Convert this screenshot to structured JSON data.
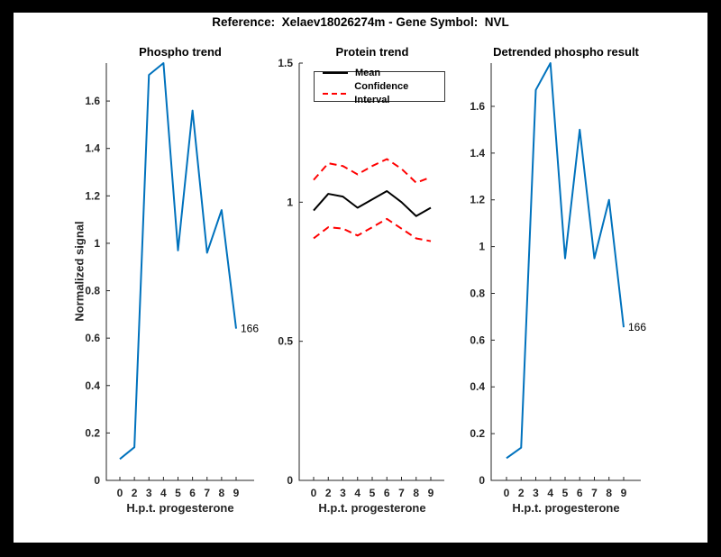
{
  "figure": {
    "title": "Reference:  Xelaev18026274m - Gene Symbol:  NVL",
    "background_color": "#ffffff",
    "border_color": "#000000",
    "axis_color": "#262626"
  },
  "chart_data": [
    {
      "id": "phospho-trend",
      "type": "line",
      "title": "Phospho trend",
      "xlabel": "H.p.t. progesterone",
      "ylabel": "Normalized signal",
      "categories": [
        "0",
        "2",
        "3",
        "4",
        "5",
        "6",
        "7",
        "8",
        "9"
      ],
      "series": [
        {
          "name": "Phospho",
          "color": "#0072BD",
          "dash": "solid",
          "values": [
            0.09,
            0.14,
            1.71,
            1.76,
            0.97,
            1.56,
            0.96,
            1.14,
            0.64
          ]
        }
      ],
      "end_label": "166",
      "ylim": [
        0,
        1.76
      ],
      "yticks": [
        0,
        0.2,
        0.4,
        0.6,
        0.8,
        1.0,
        1.2,
        1.4,
        1.6
      ],
      "ytick_labels": [
        "0",
        "0.2",
        "0.4",
        "0.6",
        "0.8",
        "1",
        "1.2",
        "1.4",
        "1.6"
      ],
      "grid": false
    },
    {
      "id": "protein-trend",
      "type": "line",
      "title": "Protein trend",
      "xlabel": "H.p.t. progesterone",
      "ylabel": "",
      "categories": [
        "0",
        "2",
        "3",
        "4",
        "5",
        "6",
        "7",
        "8",
        "9"
      ],
      "series": [
        {
          "name": "Confidence Interval upper",
          "color": "#ff0000",
          "dash": "dashed",
          "values": [
            1.08,
            1.14,
            1.13,
            1.1,
            1.13,
            1.155,
            1.12,
            1.07,
            1.09
          ]
        },
        {
          "name": "Confidence Interval lower",
          "color": "#ff0000",
          "dash": "dashed",
          "values": [
            0.87,
            0.91,
            0.905,
            0.88,
            0.91,
            0.94,
            0.905,
            0.87,
            0.86
          ]
        },
        {
          "name": "Mean",
          "color": "#000000",
          "dash": "solid",
          "values": [
            0.97,
            1.03,
            1.02,
            0.98,
            1.01,
            1.04,
            1.0,
            0.95,
            0.98
          ]
        }
      ],
      "legend": {
        "position": "top",
        "entries": [
          {
            "label": "Mean",
            "color": "#000000",
            "style": "solid"
          },
          {
            "label": "Confidence Interval",
            "color": "#ff0000",
            "style": "dashed"
          }
        ]
      },
      "ylim": [
        0,
        1.5
      ],
      "yticks": [
        0,
        0.5,
        1.0,
        1.5
      ],
      "ytick_labels": [
        "0",
        "0.5",
        "1",
        "1.5"
      ],
      "grid": false
    },
    {
      "id": "detrended-phospho",
      "type": "line",
      "title": "Detrended phospho result",
      "xlabel": "H.p.t. progesterone",
      "ylabel": "",
      "categories": [
        "0",
        "2",
        "3",
        "4",
        "5",
        "6",
        "7",
        "8",
        "9"
      ],
      "series": [
        {
          "name": "Detrended phospho",
          "color": "#0072BD",
          "dash": "solid",
          "values": [
            0.095,
            0.14,
            1.67,
            1.785,
            0.95,
            1.5,
            0.95,
            1.2,
            0.655
          ]
        }
      ],
      "end_label": "166",
      "ylim": [
        0,
        1.785
      ],
      "yticks": [
        0,
        0.2,
        0.4,
        0.6,
        0.8,
        1.0,
        1.2,
        1.4,
        1.6
      ],
      "ytick_labels": [
        "0",
        "0.2",
        "0.4",
        "0.6",
        "0.8",
        "1",
        "1.2",
        "1.4",
        "1.6"
      ],
      "grid": false
    }
  ]
}
